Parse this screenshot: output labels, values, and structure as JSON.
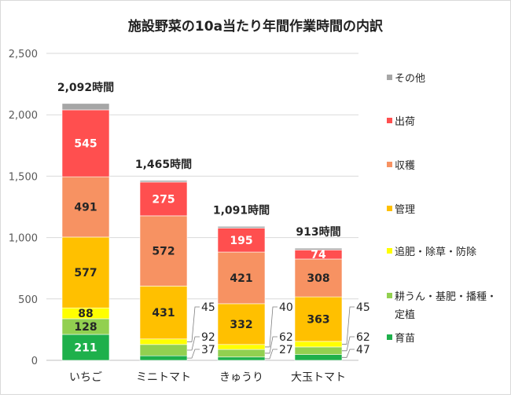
{
  "chart_data": {
    "type": "bar",
    "stacked": true,
    "title": "施設野菜の10a当たり年間作業時間の内訳",
    "categories": [
      "いちご",
      "ミニトマト",
      "きゅうり",
      "大玉トマト"
    ],
    "totals": [
      "2,092時間",
      "1,465時間",
      "1,091時間",
      "913時間"
    ],
    "ylim": [
      0,
      2500
    ],
    "yticks": [
      "0",
      "500",
      "1,000",
      "1,500",
      "2,000",
      "2,500"
    ],
    "grid": true,
    "legend_position": "right",
    "series": [
      {
        "name": "育苗",
        "color": "#1eb04b",
        "values": [
          211,
          37,
          27,
          47
        ],
        "labels": [
          "211",
          "37",
          "27",
          "47"
        ]
      },
      {
        "name": "耕うん・基肥・播種・定植",
        "color": "#92d050",
        "values": [
          128,
          92,
          62,
          62
        ],
        "labels": [
          "128",
          "92",
          "62",
          "62"
        ]
      },
      {
        "name": "追肥・除草・防除",
        "color": "#ffff00",
        "values": [
          88,
          45,
          40,
          45
        ],
        "labels": [
          "88",
          "45",
          "40",
          "45"
        ]
      },
      {
        "name": "管理",
        "color": "#ffc000",
        "values": [
          577,
          431,
          332,
          363
        ],
        "labels": [
          "577",
          "431",
          "332",
          "363"
        ]
      },
      {
        "name": "収穫",
        "color": "#f79262",
        "values": [
          491,
          572,
          421,
          308
        ],
        "labels": [
          "491",
          "572",
          "421",
          "308"
        ]
      },
      {
        "name": "出荷",
        "color": "#ff4f4f",
        "values": [
          545,
          275,
          195,
          74
        ],
        "labels": [
          "545",
          "275",
          "195",
          "74"
        ]
      },
      {
        "name": "その他",
        "color": "#a6a6a6",
        "values": [
          52,
          13,
          14,
          14
        ],
        "labels": [
          "",
          "",
          "",
          ""
        ]
      }
    ],
    "legend": [
      {
        "label": "その他",
        "color": "#a6a6a6"
      },
      {
        "label": "出荷",
        "color": "#ff4f4f"
      },
      {
        "label": "収穫",
        "color": "#f79262"
      },
      {
        "label": "管理",
        "color": "#ffc000"
      },
      {
        "label": "追肥・除草・防除",
        "color": "#ffff00"
      },
      {
        "label": "耕うん・基肥・播種・",
        "label2": "定植",
        "color": "#92d050"
      },
      {
        "label": "育苗",
        "color": "#1eb04b"
      }
    ]
  }
}
